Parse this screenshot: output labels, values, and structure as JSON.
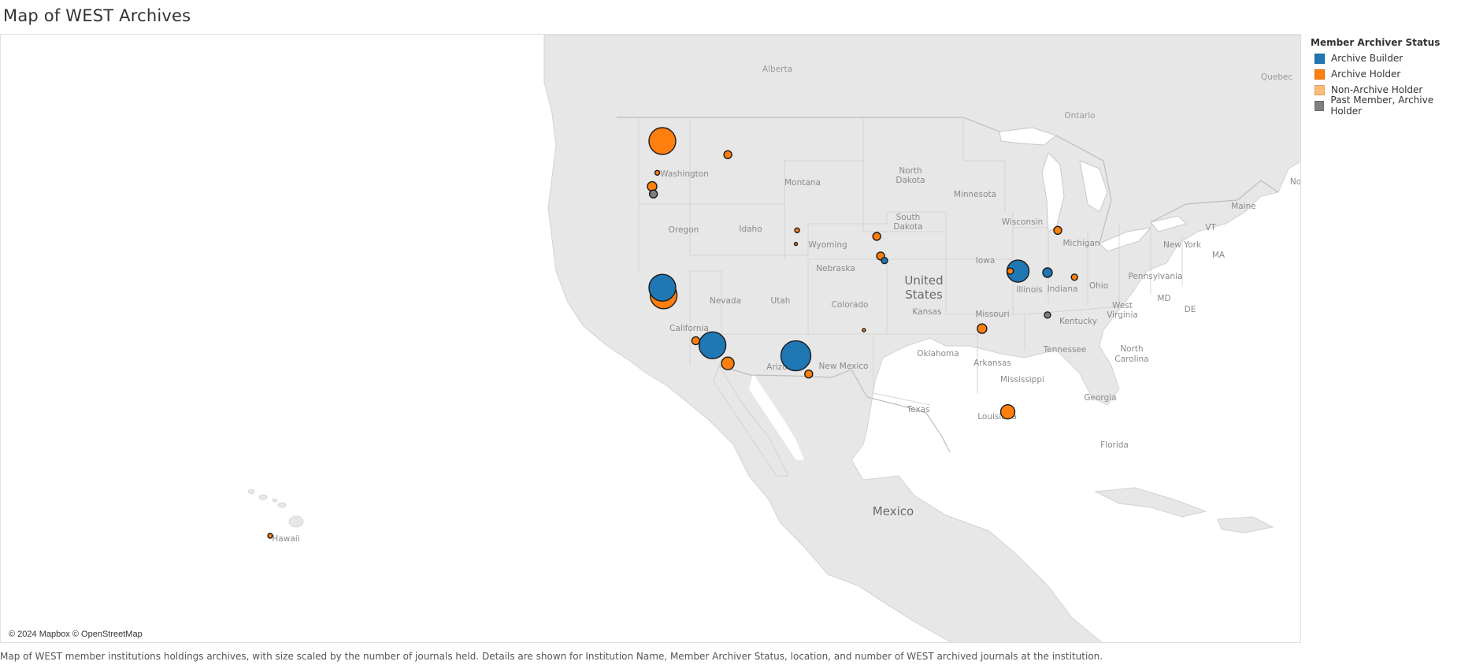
{
  "title": "Map of WEST Archives",
  "legend": {
    "title": "Member Archiver Status",
    "items": [
      {
        "label": "Archive Builder",
        "color": "#1f77b4"
      },
      {
        "label": "Archive Holder",
        "color": "#ff7f0e"
      },
      {
        "label": "Non-Archive Holder",
        "color": "#ffbb78"
      },
      {
        "label": "Past Member, Archive Holder",
        "color": "#7f7f7f"
      }
    ]
  },
  "attribution": "© 2024 Mapbox © OpenStreetMap",
  "caption": "Map of WEST member institutions holdings archives, with size scaled by the number of journals held.  Details are shown for Institution Name, Member Archiver Status, location, and number of WEST archived journals at the institution.",
  "map_labels": {
    "countries": [
      "United",
      "States",
      "Mexico"
    ],
    "provinces": [
      "Alberta",
      "Quebec",
      "Ontario"
    ],
    "states": [
      "Washington",
      "Montana",
      "North",
      "Dakota",
      "Minnesota",
      "South",
      "Dakota",
      "Wisconsin",
      "Michigan",
      "Maine",
      "Oregon",
      "Idaho",
      "Wyoming",
      "New York",
      "VT",
      "MA",
      "Pennsylvania",
      "Ohio",
      "Indiana",
      "Illinois",
      "Iowa",
      "Nebraska",
      "Nevada",
      "Utah",
      "Colorado",
      "Kansas",
      "Missouri",
      "West",
      "Virginia",
      "MD",
      "DE",
      "Kentucky",
      "California",
      "Arizona",
      "New Mexico",
      "Oklahoma",
      "Arkansas",
      "Tennessee",
      "North",
      "Carolina",
      "Mississippi",
      "Georgia",
      "Texas",
      "Louisiana",
      "Florida",
      "Hawaii",
      "No"
    ]
  },
  "markers": [
    {
      "status": "Archive Holder",
      "lon": -122.3,
      "lat": 47.6,
      "size": 17
    },
    {
      "status": "Archive Holder",
      "lon": -117.2,
      "lat": 46.7,
      "size": 5
    },
    {
      "status": "Archive Holder",
      "lon": -122.7,
      "lat": 45.5,
      "size": 3
    },
    {
      "status": "Archive Holder",
      "lon": -123.1,
      "lat": 44.6,
      "size": 6
    },
    {
      "status": "Past Member, Archive Holder",
      "lon": -123.0,
      "lat": 44.1,
      "size": 5
    },
    {
      "status": "Archive Holder",
      "lon": -122.2,
      "lat": 37.4,
      "size": 17
    },
    {
      "status": "Archive Builder",
      "lon": -122.3,
      "lat": 37.9,
      "size": 17
    },
    {
      "status": "Archive Holder",
      "lon": -119.7,
      "lat": 34.4,
      "size": 5
    },
    {
      "status": "Archive Builder",
      "lon": -118.4,
      "lat": 34.1,
      "size": 17
    },
    {
      "status": "Archive Holder",
      "lon": -117.2,
      "lat": 32.9,
      "size": 8
    },
    {
      "status": "Archive Builder",
      "lon": -111.9,
      "lat": 33.4,
      "size": 19
    },
    {
      "status": "Archive Holder",
      "lon": -110.9,
      "lat": 32.2,
      "size": 5
    },
    {
      "status": "Archive Holder",
      "lon": -111.8,
      "lat": 41.7,
      "size": 3
    },
    {
      "status": "Archive Holder",
      "lon": -111.9,
      "lat": 40.8,
      "size": 2
    },
    {
      "status": "Archive Holder",
      "lon": -105.6,
      "lat": 41.3,
      "size": 5
    },
    {
      "status": "Archive Holder",
      "lon": -105.3,
      "lat": 40.0,
      "size": 5
    },
    {
      "status": "Archive Builder",
      "lon": -105.0,
      "lat": 39.7,
      "size": 4
    },
    {
      "status": "Archive Holder",
      "lon": -106.6,
      "lat": 35.1,
      "size": 2
    },
    {
      "status": "Archive Holder",
      "lon": -95.2,
      "lat": 39.0,
      "size": 4
    },
    {
      "status": "Archive Builder",
      "lon": -94.6,
      "lat": 39.0,
      "size": 14
    },
    {
      "status": "Archive Builder",
      "lon": -92.3,
      "lat": 38.9,
      "size": 6
    },
    {
      "status": "Archive Holder",
      "lon": -90.2,
      "lat": 38.6,
      "size": 4
    },
    {
      "status": "Archive Holder",
      "lon": -91.5,
      "lat": 41.7,
      "size": 5
    },
    {
      "status": "Past Member, Archive Holder",
      "lon": -92.3,
      "lat": 36.1,
      "size": 4
    },
    {
      "status": "Archive Holder",
      "lon": -97.4,
      "lat": 35.2,
      "size": 6
    },
    {
      "status": "Archive Holder",
      "lon": -95.4,
      "lat": 29.7,
      "size": 9
    },
    {
      "status": "Archive Holder",
      "lon": -157.8,
      "lat": 21.3,
      "size": 3
    }
  ]
}
